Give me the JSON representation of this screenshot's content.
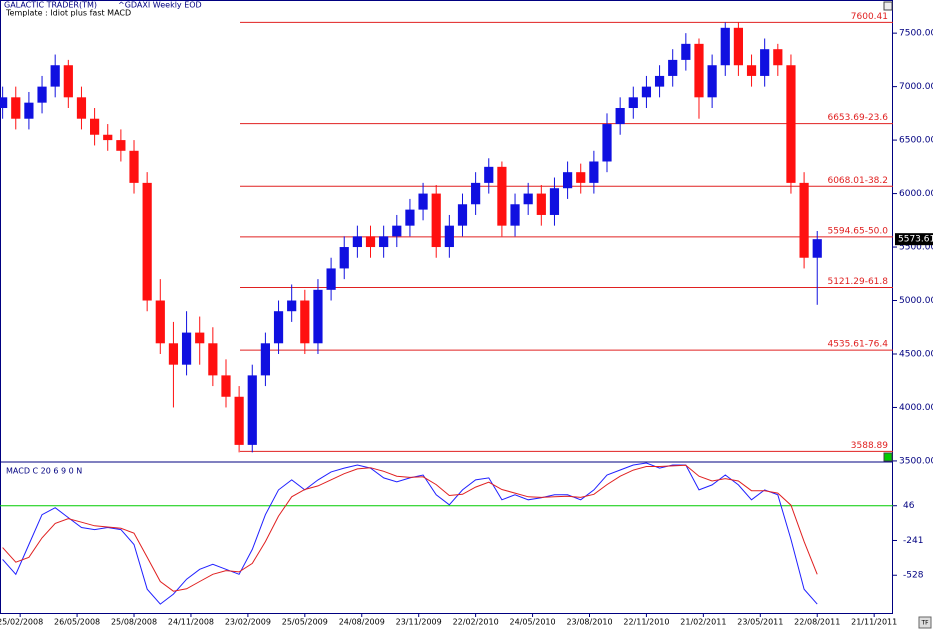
{
  "chart_data": [
    {
      "type": "candlestick",
      "title": "GALACTIC TRADER(TM)",
      "subtitle": "^GDAXI Weekly EOD",
      "annotation": "Template : Idiot plus fast MACD",
      "x": [
        -4,
        -1,
        2,
        5,
        8,
        11,
        14,
        17,
        20,
        23,
        26,
        29,
        32,
        35,
        38,
        41,
        44,
        47,
        50,
        53,
        56,
        59,
        62,
        65,
        68,
        71,
        74,
        77,
        80,
        83,
        86,
        89,
        92,
        95,
        98,
        101,
        104,
        107,
        110,
        113,
        116,
        119,
        122,
        125,
        128,
        131,
        134,
        137,
        140,
        143,
        146,
        149,
        152,
        155,
        158,
        161,
        164,
        167,
        170,
        173,
        176,
        179,
        182
      ],
      "open": [
        6800,
        6900,
        6700,
        6850,
        7000,
        7200,
        6900,
        6700,
        6550,
        6500,
        6400,
        6100,
        5000,
        4600,
        4400,
        4700,
        4600,
        4300,
        4100,
        3650,
        4300,
        4600,
        4900,
        5000,
        4600,
        5100,
        5300,
        5500,
        5600,
        5500,
        5600,
        5700,
        5850,
        6000,
        5500,
        5700,
        5900,
        6100,
        6250,
        5700,
        5900,
        6000,
        5800,
        6050,
        6200,
        6100,
        6300,
        6650,
        6800,
        6900,
        7000,
        7100,
        7250,
        7400,
        6900,
        7200,
        7550,
        7200,
        7100,
        7350,
        7200,
        6100,
        5400
      ],
      "high": [
        7000,
        7000,
        6950,
        7100,
        7300,
        7250,
        7000,
        6800,
        6650,
        6600,
        6500,
        6200,
        5200,
        4800,
        4900,
        4850,
        4750,
        4450,
        4200,
        4400,
        4700,
        5000,
        5150,
        5100,
        5200,
        5400,
        5600,
        5700,
        5700,
        5700,
        5800,
        5950,
        6100,
        6080,
        5800,
        6000,
        6200,
        6330,
        6300,
        6000,
        6100,
        6080,
        6150,
        6300,
        6280,
        6400,
        6750,
        6900,
        7000,
        7100,
        7200,
        7350,
        7500,
        7450,
        7300,
        7600,
        7600,
        7300,
        7450,
        7400,
        7300,
        6200,
        5650
      ],
      "low": [
        6700,
        6600,
        6600,
        6750,
        6900,
        6800,
        6600,
        6450,
        6400,
        6300,
        6000,
        4900,
        4500,
        4000,
        4300,
        4400,
        4200,
        4000,
        3580,
        3580,
        4200,
        4500,
        4800,
        4500,
        4500,
        5000,
        5200,
        5400,
        5400,
        5400,
        5500,
        5600,
        5750,
        5400,
        5400,
        5600,
        5800,
        6000,
        5600,
        5600,
        5800,
        5700,
        5700,
        5950,
        6000,
        6000,
        6200,
        6550,
        6700,
        6800,
        6900,
        7000,
        7150,
        6700,
        6800,
        7100,
        7100,
        7000,
        7000,
        7100,
        6000,
        5300,
        4960
      ],
      "close": [
        6900,
        6700,
        6850,
        7000,
        7200,
        6900,
        6700,
        6550,
        6500,
        6400,
        6100,
        5000,
        4600,
        4400,
        4700,
        4600,
        4300,
        4100,
        3650,
        4300,
        4600,
        4900,
        5000,
        4600,
        5100,
        5300,
        5500,
        5600,
        5500,
        5600,
        5700,
        5850,
        6000,
        5500,
        5700,
        5900,
        6100,
        6250,
        5700,
        5900,
        6000,
        5800,
        6050,
        6200,
        6100,
        6300,
        6650,
        6800,
        6900,
        7000,
        7100,
        7250,
        7400,
        6900,
        7200,
        7550,
        7200,
        7100,
        7350,
        7200,
        6100,
        5400,
        5573.61
      ],
      "up_color": "#1010e0",
      "down_color": "#ff1010",
      "levels": [
        7600.41,
        {
          "value": 6653.69,
          "label": "6653.69-23.6"
        },
        {
          "value": 6068.01,
          "label": "6068.01-38.2"
        },
        {
          "value": 5594.65,
          "label": "5594.65-50.0"
        },
        {
          "value": 5121.29,
          "label": "5121.29-61.8"
        },
        {
          "value": 4535.61,
          "label": "4535.61-76.4"
        },
        3588.89
      ],
      "level_color": "#e02020",
      "xlim": [
        -4.6,
        199.3
      ],
      "ylim": [
        3490,
        7810
      ],
      "yticks": [
        {
          "value": 7500,
          "label": "7500.00"
        },
        {
          "value": 7000,
          "label": "7000.00"
        },
        {
          "value": 6500,
          "label": "6500.00"
        },
        {
          "value": 6000,
          "label": "6000.00"
        },
        {
          "value": 5500,
          "label": "5500.00"
        },
        {
          "value": 5000,
          "label": "5000.00"
        },
        {
          "value": 4500,
          "label": "4500.00"
        },
        {
          "value": 4000,
          "label": "4000.00"
        },
        {
          "value": 3500,
          "label": "3500.00"
        }
      ]
    },
    {
      "type": "line",
      "title": "MACD C 20 6 9 0 N",
      "x": [
        -4,
        -1,
        2,
        5,
        8,
        11,
        14,
        17,
        20,
        23,
        26,
        29,
        32,
        35,
        38,
        41,
        44,
        47,
        50,
        53,
        56,
        59,
        62,
        65,
        68,
        71,
        74,
        77,
        80,
        83,
        86,
        89,
        92,
        95,
        98,
        101,
        104,
        107,
        110,
        113,
        116,
        119,
        122,
        125,
        128,
        131,
        134,
        137,
        140,
        143,
        146,
        149,
        152,
        155,
        158,
        161,
        164,
        167,
        170,
        173,
        176,
        179,
        182
      ],
      "series": [
        {
          "color": "#2020ff",
          "values": [
            -397,
            -520,
            -274,
            -28,
            30,
            -52,
            -134,
            -151,
            -134,
            -151,
            -274,
            -643,
            -766,
            -684,
            -561,
            -479,
            -438,
            -479,
            -520,
            -315,
            -28,
            177,
            259,
            177,
            259,
            325,
            357,
            382,
            357,
            276,
            243,
            276,
            300,
            136,
            54,
            177,
            259,
            276,
            95,
            136,
            95,
            112,
            136,
            136,
            95,
            177,
            300,
            341,
            382,
            399,
            357,
            382,
            382,
            177,
            218,
            300,
            218,
            95,
            177,
            136,
            -233,
            -643,
            -766
          ]
        },
        {
          "color": "#e02020",
          "values": [
            -300,
            -420,
            -380,
            -220,
            -100,
            -60,
            -90,
            -120,
            -130,
            -140,
            -180,
            -380,
            -580,
            -660,
            -640,
            -580,
            -520,
            -490,
            -500,
            -430,
            -250,
            -40,
            120,
            180,
            210,
            260,
            310,
            350,
            360,
            330,
            290,
            280,
            285,
            220,
            130,
            140,
            200,
            240,
            180,
            150,
            120,
            115,
            120,
            125,
            115,
            140,
            220,
            290,
            340,
            370,
            370,
            375,
            380,
            290,
            250,
            270,
            250,
            170,
            170,
            150,
            50,
            -250,
            -520
          ]
        }
      ],
      "hline": 46,
      "hline_color": "#00cc00",
      "xlim": [
        -4.6,
        199.3
      ],
      "ylim": [
        -848,
        407
      ],
      "yticks": [
        46,
        -241,
        -528
      ],
      "xticks": [
        {
          "value": 0,
          "label": "25/02/2008"
        },
        {
          "value": 13,
          "label": "26/05/2008"
        },
        {
          "value": 26,
          "label": "25/08/2008"
        },
        {
          "value": 39,
          "label": "24/11/2008"
        },
        {
          "value": 52,
          "label": "23/02/2009"
        },
        {
          "value": 65,
          "label": "25/05/2009"
        },
        {
          "value": 78,
          "label": "24/08/2009"
        },
        {
          "value": 91,
          "label": "23/11/2009"
        },
        {
          "value": 104,
          "label": "22/02/2010"
        },
        {
          "value": 117,
          "label": "24/05/2010"
        },
        {
          "value": 130,
          "label": "23/08/2010"
        },
        {
          "value": 143,
          "label": "22/11/2010"
        },
        {
          "value": 156,
          "label": "21/02/2011"
        },
        {
          "value": 169,
          "label": "23/05/2011"
        },
        {
          "value": 182,
          "label": "22/08/2011"
        },
        {
          "value": 195,
          "label": "21/11/2011"
        }
      ]
    }
  ],
  "footer": "TF"
}
